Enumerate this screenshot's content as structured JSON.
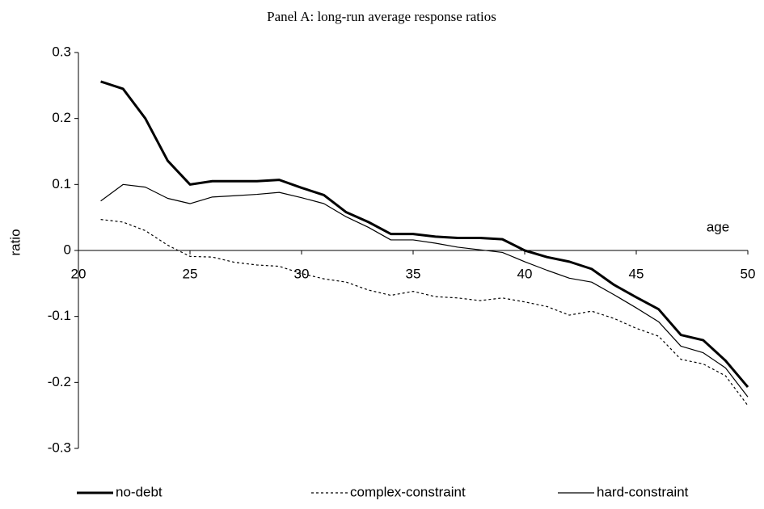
{
  "chart_data": {
    "type": "line",
    "title": "Panel A: long-run average response ratios",
    "x_label": "age",
    "y_label": "ratio",
    "x": [
      21,
      22,
      23,
      24,
      25,
      26,
      27,
      28,
      29,
      30,
      31,
      32,
      33,
      34,
      35,
      36,
      37,
      38,
      39,
      40,
      41,
      42,
      43,
      44,
      45,
      46,
      47,
      48,
      49,
      50
    ],
    "series": [
      {
        "name": "no-debt",
        "color": "#000000",
        "width": 3,
        "style": "solid",
        "values": [
          0.256,
          0.245,
          0.2,
          0.136,
          0.1,
          0.105,
          0.105,
          0.105,
          0.107,
          0.095,
          0.084,
          0.058,
          0.043,
          0.025,
          0.025,
          0.021,
          0.019,
          0.019,
          0.017,
          0,
          -0.01,
          -0.017,
          -0.028,
          -0.052,
          -0.071,
          -0.089,
          -0.128,
          -0.136,
          -0.167,
          -0.207
        ]
      },
      {
        "name": "complex-constraint",
        "color": "#000000",
        "width": 1.2,
        "style": "dashed",
        "values": [
          0.047,
          0.043,
          0.03,
          0.008,
          -0.009,
          -0.01,
          -0.018,
          -0.022,
          -0.024,
          -0.035,
          -0.043,
          -0.048,
          -0.06,
          -0.068,
          -0.062,
          -0.07,
          -0.072,
          -0.076,
          -0.072,
          -0.078,
          -0.085,
          -0.098,
          -0.092,
          -0.103,
          -0.118,
          -0.13,
          -0.165,
          -0.172,
          -0.19,
          -0.235
        ]
      },
      {
        "name": "hard-constraint",
        "color": "#000000",
        "width": 1.2,
        "style": "solid",
        "values": [
          0.075,
          0.1,
          0.096,
          0.079,
          0.071,
          0.081,
          0.083,
          0.085,
          0.088,
          0.08,
          0.071,
          0.051,
          0.035,
          0.016,
          0.016,
          0.011,
          0.005,
          0.001,
          -0.003,
          -0.017,
          -0.03,
          -0.042,
          -0.048,
          -0.067,
          -0.087,
          -0.108,
          -0.145,
          -0.155,
          -0.178,
          -0.222
        ]
      }
    ],
    "xlim": [
      20,
      50
    ],
    "xticks": [
      20,
      25,
      30,
      35,
      40,
      45,
      50
    ],
    "ylim": [
      -0.3,
      0.3
    ],
    "yticks": [
      -0.3,
      -0.2,
      -0.1,
      0,
      0.1,
      0.2,
      0.3
    ],
    "legend": "bottom",
    "grid": false
  }
}
